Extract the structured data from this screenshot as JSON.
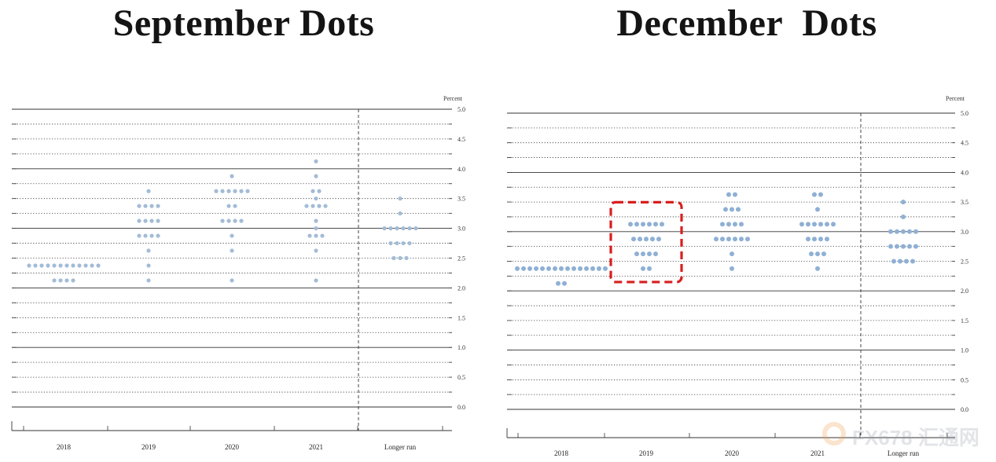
{
  "chart_data": [
    {
      "type": "scatter",
      "title": "September Dots",
      "unit_label": "Percent",
      "ylim": [
        0,
        5
      ],
      "yticks": [
        "0.0",
        "0.5",
        "1.0",
        "1.5",
        "2.0",
        "2.5",
        "3.0",
        "3.5",
        "4.0",
        "4.5",
        "5.0"
      ],
      "categories": [
        "2018",
        "2019",
        "2020",
        "2021",
        "Longer run"
      ],
      "dot_color": "#a3bcd6",
      "series": [
        {
          "category": "2018",
          "points": [
            {
              "y": 2.375,
              "count": 12
            },
            {
              "y": 2.125,
              "count": 4
            }
          ]
        },
        {
          "category": "2019",
          "points": [
            {
              "y": 3.625,
              "count": 1
            },
            {
              "y": 3.375,
              "count": 4
            },
            {
              "y": 3.125,
              "count": 4
            },
            {
              "y": 2.875,
              "count": 4
            },
            {
              "y": 2.625,
              "count": 1
            },
            {
              "y": 2.375,
              "count": 1
            },
            {
              "y": 2.125,
              "count": 1
            }
          ]
        },
        {
          "category": "2020",
          "points": [
            {
              "y": 3.875,
              "count": 1
            },
            {
              "y": 3.625,
              "count": 6
            },
            {
              "y": 3.375,
              "count": 2
            },
            {
              "y": 3.125,
              "count": 4
            },
            {
              "y": 2.875,
              "count": 1
            },
            {
              "y": 2.625,
              "count": 1
            },
            {
              "y": 2.125,
              "count": 1
            }
          ]
        },
        {
          "category": "2021",
          "points": [
            {
              "y": 4.125,
              "count": 1
            },
            {
              "y": 3.875,
              "count": 1
            },
            {
              "y": 3.625,
              "count": 2
            },
            {
              "y": 3.5,
              "count": 1
            },
            {
              "y": 3.375,
              "count": 4
            },
            {
              "y": 3.125,
              "count": 1
            },
            {
              "y": 3.0,
              "count": 1
            },
            {
              "y": 2.875,
              "count": 3
            },
            {
              "y": 2.625,
              "count": 1
            },
            {
              "y": 2.125,
              "count": 1
            }
          ]
        },
        {
          "category": "Longer run",
          "points": [
            {
              "y": 3.5,
              "count": 1
            },
            {
              "y": 3.25,
              "count": 1
            },
            {
              "y": 3.0,
              "count": 6
            },
            {
              "y": 2.75,
              "count": 4
            },
            {
              "y": 2.5,
              "count": 3
            }
          ]
        }
      ]
    },
    {
      "type": "scatter",
      "title": "December  Dots",
      "unit_label": "Percent",
      "ylim": [
        0,
        5
      ],
      "yticks": [
        "0.0",
        "0.5",
        "1.0",
        "1.5",
        "2.0",
        "2.5",
        "3.0",
        "3.5",
        "4.0",
        "4.5",
        "5.0"
      ],
      "categories": [
        "2018",
        "2019",
        "2020",
        "2021",
        "Longer run"
      ],
      "dot_color": "#8fb0d4",
      "highlight": {
        "category": "2019",
        "color": "#d91e1e",
        "style": "dashed"
      },
      "series": [
        {
          "category": "2018",
          "points": [
            {
              "y": 2.375,
              "count": 15
            },
            {
              "y": 2.125,
              "count": 2
            }
          ]
        },
        {
          "category": "2019",
          "points": [
            {
              "y": 3.125,
              "count": 6
            },
            {
              "y": 2.875,
              "count": 5
            },
            {
              "y": 2.625,
              "count": 4
            },
            {
              "y": 2.375,
              "count": 2
            }
          ]
        },
        {
          "category": "2020",
          "points": [
            {
              "y": 3.625,
              "count": 2
            },
            {
              "y": 3.375,
              "count": 3
            },
            {
              "y": 3.125,
              "count": 4
            },
            {
              "y": 2.875,
              "count": 6
            },
            {
              "y": 2.625,
              "count": 1
            },
            {
              "y": 2.375,
              "count": 1
            }
          ]
        },
        {
          "category": "2021",
          "points": [
            {
              "y": 3.625,
              "count": 2
            },
            {
              "y": 3.375,
              "count": 1
            },
            {
              "y": 3.125,
              "count": 6
            },
            {
              "y": 2.875,
              "count": 4
            },
            {
              "y": 2.625,
              "count": 3
            },
            {
              "y": 2.375,
              "count": 1
            }
          ]
        },
        {
          "category": "Longer run",
          "points": [
            {
              "y": 3.5,
              "count": 1
            },
            {
              "y": 3.25,
              "count": 1
            },
            {
              "y": 3.0,
              "count": 5
            },
            {
              "y": 2.75,
              "count": 5
            },
            {
              "y": 2.5,
              "count": 4
            }
          ]
        }
      ]
    }
  ],
  "watermark": {
    "text": "FX678 汇通网",
    "icon": "fx678-logo-icon"
  }
}
